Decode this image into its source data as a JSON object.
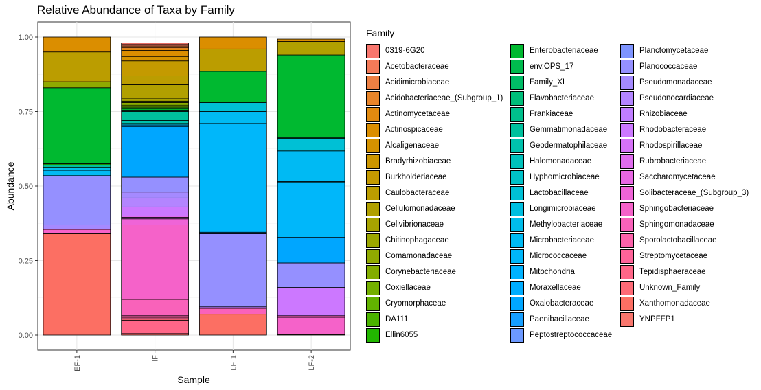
{
  "chart_data": {
    "type": "bar",
    "title": "Relative Abundance of Taxa by Family",
    "xlabel": "Sample",
    "ylabel": "Abundance",
    "ylim": [
      0,
      1
    ],
    "yticks": [
      "0.00",
      "0.25",
      "0.50",
      "0.75",
      "1.00"
    ],
    "ytick_values": [
      0,
      0.25,
      0.5,
      0.75,
      1.0
    ],
    "grid": true,
    "stacked": true,
    "legend_title": "Family",
    "legend_position": "right",
    "families": [
      {
        "name": "0319-6G20",
        "color": "#F8766D"
      },
      {
        "name": "Acetobacteraceae",
        "color": "#F47A58"
      },
      {
        "name": "Acidimicrobiaceae",
        "color": "#EE8043"
      },
      {
        "name": "Acidobacteriaceae_(Subgroup_1)",
        "color": "#E8852A"
      },
      {
        "name": "Actinomycetaceae",
        "color": "#E28A10"
      },
      {
        "name": "Actinospicaceae",
        "color": "#DB8E00"
      },
      {
        "name": "Alcaligenaceae",
        "color": "#D49200"
      },
      {
        "name": "Bradyrhizobiaceae",
        "color": "#CC9600"
      },
      {
        "name": "Burkholderiaceae",
        "color": "#C49A00"
      },
      {
        "name": "Caulobacteraceae",
        "color": "#BB9D00"
      },
      {
        "name": "Cellulomonadaceae",
        "color": "#B1A000"
      },
      {
        "name": "Cellvibrionaceae",
        "color": "#A7A300"
      },
      {
        "name": "Chitinophagaceae",
        "color": "#9CA700"
      },
      {
        "name": "Comamonadaceae",
        "color": "#90AA00"
      },
      {
        "name": "Corynebacteriaceae",
        "color": "#83AD00"
      },
      {
        "name": "Coxiellaceae",
        "color": "#74AF00"
      },
      {
        "name": "Cryomorphaceae",
        "color": "#62B200"
      },
      {
        "name": "DA111",
        "color": "#4BB400"
      },
      {
        "name": "Ellin6055",
        "color": "#22B700"
      },
      {
        "name": "Enterobacteriaceae",
        "color": "#00B930"
      },
      {
        "name": "env.OPS_17",
        "color": "#00BB4E"
      },
      {
        "name": "Family_XI",
        "color": "#00BC66"
      },
      {
        "name": "Flavobacteriaceae",
        "color": "#00BE7A"
      },
      {
        "name": "Frankiaceae",
        "color": "#00BF8C"
      },
      {
        "name": "Gemmatimonadaceae",
        "color": "#00C09D"
      },
      {
        "name": "Geodermatophilaceae",
        "color": "#00C1AC"
      },
      {
        "name": "Halomonadaceae",
        "color": "#00C1BB"
      },
      {
        "name": "Hyphomicrobiaceae",
        "color": "#00C1C8"
      },
      {
        "name": "Lactobacillaceae",
        "color": "#00C0D5"
      },
      {
        "name": "Longimicrobiaceae",
        "color": "#00BFE0"
      },
      {
        "name": "Methylobacteriaceae",
        "color": "#00BDEA"
      },
      {
        "name": "Microbacteriaceae",
        "color": "#00BAF3"
      },
      {
        "name": "Micrococcaceae",
        "color": "#00B7FA"
      },
      {
        "name": "Mitochondria",
        "color": "#00B2FF"
      },
      {
        "name": "Moraxellaceae",
        "color": "#00ADFF"
      },
      {
        "name": "Oxalobacteraceae",
        "color": "#00A6FF"
      },
      {
        "name": "Paenibacillaceae",
        "color": "#179FFF"
      },
      {
        "name": "Peptostreptococcaceae",
        "color": "#6C99FF"
      },
      {
        "name": "Planctomycetaceae",
        "color": "#7E94FF"
      },
      {
        "name": "Planococcaceae",
        "color": "#9590FF"
      },
      {
        "name": "Pseudomonadaceae",
        "color": "#A58AFF"
      },
      {
        "name": "Pseudonocardiaceae",
        "color": "#B385FF"
      },
      {
        "name": "Rhizobiaceae",
        "color": "#C07EFF"
      },
      {
        "name": "Rhodobacteraceae",
        "color": "#CC78FF"
      },
      {
        "name": "Rhodospirillaceae",
        "color": "#D672F7"
      },
      {
        "name": "Rubrobacteriaceae",
        "color": "#E06CEE"
      },
      {
        "name": "Saccharomycetaceae",
        "color": "#E867E3"
      },
      {
        "name": "Solibacteraceae_(Subgroup_3)",
        "color": "#EF64D7"
      },
      {
        "name": "Sphingobacteriaceae",
        "color": "#F562C9"
      },
      {
        "name": "Sphingomonadaceae",
        "color": "#F962BA"
      },
      {
        "name": "Sporolactobacillaceae",
        "color": "#FC62AA"
      },
      {
        "name": "Streptomycetaceae",
        "color": "#FE6399"
      },
      {
        "name": "Tepidisphaeraceae",
        "color": "#FF6688"
      },
      {
        "name": "Unknown_Family",
        "color": "#FE6A76"
      },
      {
        "name": "Xanthomonadaceae",
        "color": "#FC6F63"
      },
      {
        "name": "YNPFFP1",
        "color": "#F8766D"
      }
    ],
    "categories": [
      "EF-1",
      "IF",
      "LF-1",
      "LF-2"
    ],
    "samples": [
      {
        "name": "EF-1",
        "segments": [
          {
            "family": "Xanthomonadaceae",
            "value": 0.34
          },
          {
            "family": "Sphingobacteriaceae",
            "value": 0.015
          },
          {
            "family": "Pseudomonadaceae",
            "value": 0.015
          },
          {
            "family": "Planococcaceae",
            "value": 0.165
          },
          {
            "family": "Microbacteriaceae",
            "value": 0.018
          },
          {
            "family": "Methylobacteriaceae",
            "value": 0.01
          },
          {
            "family": "Gemmatimonadaceae",
            "value": 0.008
          },
          {
            "family": "Ellin6055",
            "value": 0.004
          },
          {
            "family": "Enterobacteriaceae",
            "value": 0.255
          },
          {
            "family": "Comamonadaceae",
            "value": 0.02
          },
          {
            "family": "Caulobacteraceae",
            "value": 0.1
          },
          {
            "family": "Actinospicaceae",
            "value": 0.05
          }
        ]
      },
      {
        "name": "IF",
        "segments": [
          {
            "family": "Xanthomonadaceae",
            "value": 0.005
          },
          {
            "family": "Tepidisphaeraceae",
            "value": 0.045
          },
          {
            "family": "Unknown_Family",
            "value": 0.005
          },
          {
            "family": "Streptomycetaceae",
            "value": 0.005
          },
          {
            "family": "Sporolactobacillaceae",
            "value": 0.005
          },
          {
            "family": "Sphingomonadaceae",
            "value": 0.055
          },
          {
            "family": "Sphingobacteriaceae",
            "value": 0.25
          },
          {
            "family": "Solibacteraceae_(Subgroup_3)",
            "value": 0.02
          },
          {
            "family": "Saccharomycetaceae",
            "value": 0.005
          },
          {
            "family": "Rubrobacteriaceae",
            "value": 0.005
          },
          {
            "family": "Rhodobacteraceae",
            "value": 0.03
          },
          {
            "family": "Pseudonocardiaceae",
            "value": 0.03
          },
          {
            "family": "Pseudomonadaceae",
            "value": 0.02
          },
          {
            "family": "Planococcaceae",
            "value": 0.05
          },
          {
            "family": "Oxalobacteraceae",
            "value": 0.165
          },
          {
            "family": "Moraxellaceae",
            "value": 0.005
          },
          {
            "family": "Mitochondria",
            "value": 0.005
          },
          {
            "family": "Longimicrobiaceae",
            "value": 0.005
          },
          {
            "family": "Geodermatophilaceae",
            "value": 0.01
          },
          {
            "family": "Gemmatimonadaceae",
            "value": 0.03
          },
          {
            "family": "Flavobacteriaceae",
            "value": 0.005
          },
          {
            "family": "Enterobacteriaceae",
            "value": 0.005
          },
          {
            "family": "DA111",
            "value": 0.005
          },
          {
            "family": "Coxiellaceae",
            "value": 0.005
          },
          {
            "family": "Corynebacteriaceae",
            "value": 0.005
          },
          {
            "family": "Comamonadaceae",
            "value": 0.005
          },
          {
            "family": "Chitinophagaceae",
            "value": 0.005
          },
          {
            "family": "Cellvibrionaceae",
            "value": 0.01
          },
          {
            "family": "Cellulomonadaceae",
            "value": 0.045
          },
          {
            "family": "Caulobacteraceae",
            "value": 0.03
          },
          {
            "family": "Burkholderiaceae",
            "value": 0.05
          },
          {
            "family": "Alcaligenaceae",
            "value": 0.015
          },
          {
            "family": "Actinospicaceae",
            "value": 0.02
          },
          {
            "family": "Actinomycetaceae",
            "value": 0.005
          },
          {
            "family": "Acidobacteriaceae_(Subgroup_1)",
            "value": 0.005
          },
          {
            "family": "Acidimicrobiaceae",
            "value": 0.005
          },
          {
            "family": "Acetobacteraceae",
            "value": 0.005
          },
          {
            "family": "0319-6G20",
            "value": 0.005
          }
        ]
      },
      {
        "name": "LF-1",
        "segments": [
          {
            "family": "Xanthomonadaceae",
            "value": 0.07
          },
          {
            "family": "Sphingomonadaceae",
            "value": 0.02
          },
          {
            "family": "Rhizobiaceae",
            "value": 0.005
          },
          {
            "family": "Planococcaceae",
            "value": 0.245
          },
          {
            "family": "Mitochondria",
            "value": 0.005
          },
          {
            "family": "Micrococcaceae",
            "value": 0.365
          },
          {
            "family": "Microbacteriaceae",
            "value": 0.04
          },
          {
            "family": "Lactobacillaceae",
            "value": 0.03
          },
          {
            "family": "Enterobacteriaceae",
            "value": 0.105
          },
          {
            "family": "Caulobacteraceae",
            "value": 0.075
          },
          {
            "family": "Actinospicaceae",
            "value": 0.04
          }
        ]
      },
      {
        "name": "LF-2",
        "segments": [
          {
            "family": "YNPFFP1",
            "value": 0.002
          },
          {
            "family": "Sphingobacteriaceae",
            "value": 0.058
          },
          {
            "family": "Sphingomonadaceae",
            "value": 0.005
          },
          {
            "family": "Rhodobacteraceae",
            "value": 0.095
          },
          {
            "family": "Planococcaceae",
            "value": 0.082
          },
          {
            "family": "Oxalobacteraceae",
            "value": 0.086
          },
          {
            "family": "Micrococcaceae",
            "value": 0.184
          },
          {
            "family": "Methylobacteriaceae",
            "value": 0.003
          },
          {
            "family": "Microbacteriaceae",
            "value": 0.103
          },
          {
            "family": "Lactobacillaceae",
            "value": 0.042
          },
          {
            "family": "Family_XI",
            "value": 0.003
          },
          {
            "family": "Enterobacteriaceae",
            "value": 0.277
          },
          {
            "family": "Cellulomonadaceae",
            "value": 0.045
          },
          {
            "family": "Actinospicaceae",
            "value": 0.008
          }
        ]
      }
    ]
  }
}
